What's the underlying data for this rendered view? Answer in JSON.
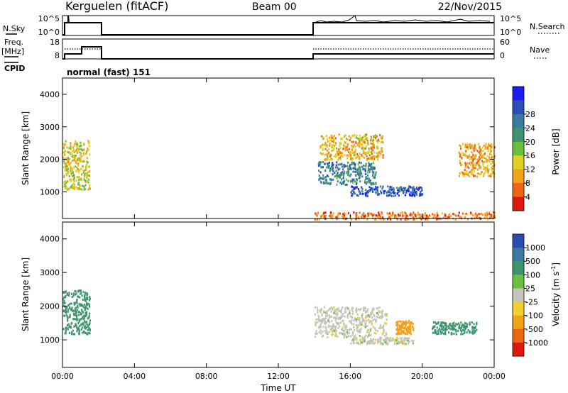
{
  "header": {
    "station": "Kerguelen (fitACF)",
    "beam": "Beam 00",
    "date": "22/Nov/2015"
  },
  "noise_panel": {
    "left_label": "N.Sky",
    "left_ticks": [
      "10^5",
      "10^0"
    ],
    "right_label": "N.Search",
    "right_ticks": [
      "10^5",
      "10^0"
    ]
  },
  "freq_panel": {
    "left_label_1": "Freq.",
    "left_label_2": "[MHz]",
    "left_ticks": [
      "18",
      "8"
    ],
    "right_label": "Nave",
    "right_ticks": [
      "60",
      "0"
    ]
  },
  "cpid": {
    "label": "CPID",
    "value": "normal (fast) 151"
  },
  "chart_data": [
    {
      "type": "heatmap",
      "title": "",
      "ylabel": "Slant Range [km]",
      "xlabel": "",
      "y_ticks": [
        "1000",
        "2000",
        "3000",
        "4000"
      ],
      "ylim": [
        180,
        4500
      ],
      "xlim_hours": [
        0,
        24
      ],
      "colorbar": {
        "label": "Power [dB]",
        "ticks": [
          "4",
          "8",
          "12",
          "16",
          "20",
          "24",
          "28"
        ],
        "colors": [
          "#1b1bf0",
          "#2a4fb8",
          "#3a7a9c",
          "#3f9470",
          "#6bbf3c",
          "#e0d020",
          "#f2a21a",
          "#ee6614",
          "#dd1a10"
        ]
      },
      "data_coverage": [
        {
          "start": "00:00",
          "end": "02:00"
        },
        {
          "start": "14:00",
          "end": "24:00"
        }
      ],
      "features": [
        {
          "t_start": 14.2,
          "t_end": 17.4,
          "range_start": 1250,
          "range_end": 1950,
          "value_db": 22
        },
        {
          "t_start": 16.0,
          "t_end": 20.0,
          "range_start": 900,
          "range_end": 1200,
          "value_db": 26
        },
        {
          "t_start": 14.3,
          "t_end": 17.8,
          "range_start": 2000,
          "range_end": 2800,
          "value_db": 10
        },
        {
          "t_start": 0.0,
          "t_end": 1.5,
          "range_start": 1100,
          "range_end": 2600,
          "value_db": 12
        },
        {
          "t_start": 22.0,
          "t_end": 24.0,
          "range_start": 1500,
          "range_end": 2500,
          "value_db": 9
        },
        {
          "t_start": 14.0,
          "t_end": 24.0,
          "range_start": 180,
          "range_end": 400,
          "value_db": 6
        }
      ]
    },
    {
      "type": "heatmap",
      "title": "",
      "ylabel": "Slant Range [km]",
      "xlabel": "Time UT",
      "x_ticks": [
        "00:00",
        "04:00",
        "08:00",
        "12:00",
        "16:00",
        "20:00",
        "00:00"
      ],
      "y_ticks": [
        "1000",
        "2000",
        "3000",
        "4000"
      ],
      "ylim": [
        180,
        4500
      ],
      "xlim_hours": [
        0,
        24
      ],
      "colorbar": {
        "label": "Velocity [m s^-1]",
        "ticks": [
          "1000",
          "500",
          "100",
          "25",
          "-25",
          "-100",
          "-500",
          "-1000"
        ],
        "colors": [
          "#2a4fb0",
          "#3a7aa0",
          "#3f9470",
          "#6bbf3c",
          "#c4c4bc",
          "#f2cf2a",
          "#f2a21a",
          "#ee6614",
          "#dd1a10"
        ]
      },
      "data_coverage": [
        {
          "start": "00:00",
          "end": "02:00"
        },
        {
          "start": "14:00",
          "end": "24:00"
        }
      ],
      "features": [
        {
          "t_start": 14.0,
          "t_end": 18.0,
          "range_start": 1100,
          "range_end": 2000,
          "value_ms": 0
        },
        {
          "t_start": 18.5,
          "t_end": 19.5,
          "range_start": 1200,
          "range_end": 1600,
          "value_ms": -150
        },
        {
          "t_start": 20.5,
          "t_end": 23.0,
          "range_start": 1200,
          "range_end": 1550,
          "value_ms": 150
        },
        {
          "t_start": 0.0,
          "t_end": 1.5,
          "range_start": 1200,
          "range_end": 2500,
          "value_ms": 200
        },
        {
          "t_start": 16.0,
          "t_end": 19.5,
          "range_start": 900,
          "range_end": 1100,
          "value_ms": 0
        }
      ]
    }
  ]
}
